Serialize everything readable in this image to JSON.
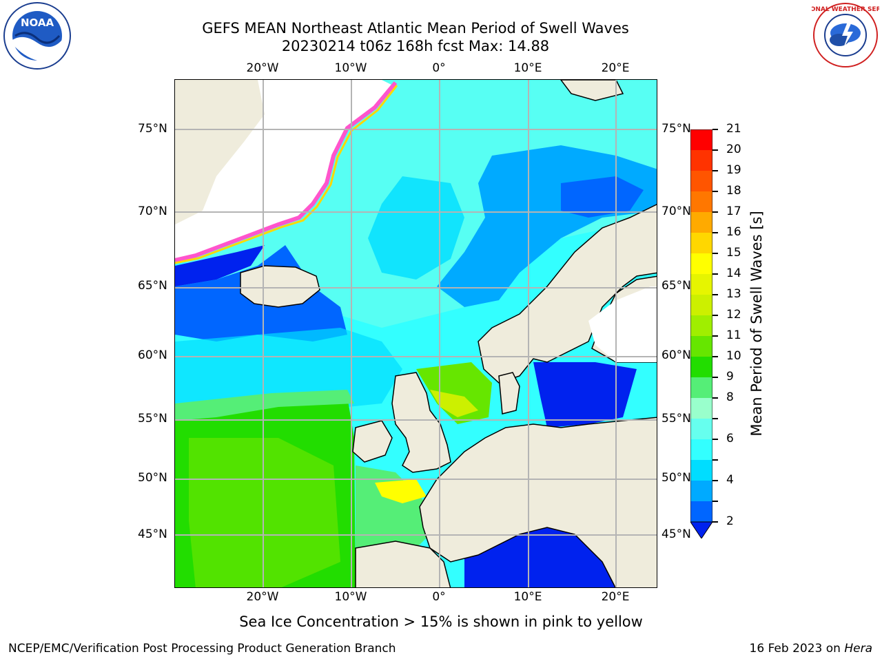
{
  "title": {
    "line1": "GEFS MEAN Northeast Atlantic Mean Period of Swell Waves",
    "line2": "20230214 t06z 168h fcst   Max: 14.88"
  },
  "map": {
    "lon_ticks": [
      "20°W",
      "10°W",
      "0°",
      "10°E",
      "20°E"
    ],
    "lat_ticks": [
      "75°N",
      "70°N",
      "65°N",
      "60°N",
      "55°N",
      "50°N",
      "45°N"
    ],
    "colors": {
      "land": "#efecdc",
      "ice_free_white": "#ffffff",
      "gridline": "#b4b4b4"
    }
  },
  "colorbar": {
    "label": "Mean Period of Swell Waves [s]",
    "ticks": [
      "21",
      "20",
      "19",
      "18",
      "17",
      "16",
      "15",
      "14",
      "13",
      "12",
      "11",
      "10",
      "9",
      "8",
      "7",
      "6",
      "5",
      "4",
      "3",
      "2"
    ],
    "tick_labels_shown": [
      "21",
      "20",
      "19",
      "18",
      "17",
      "16",
      "15",
      "14",
      "13",
      "12",
      "11",
      "10",
      "9",
      "8",
      "6",
      "4",
      "2"
    ],
    "colors": [
      "#ff0000",
      "#ff3300",
      "#ff5500",
      "#ff7700",
      "#ffaa00",
      "#ffd700",
      "#ffff00",
      "#e6f500",
      "#ccf000",
      "#a0ee00",
      "#66e600",
      "#22dd00",
      "#55ee77",
      "#99ffcc",
      "#66ffee",
      "#33ffff",
      "#00ddff",
      "#00aaff",
      "#0066ff",
      "#0022ee"
    ]
  },
  "ice_note": "Sea Ice Concentration > 15% is shown in pink to yellow",
  "footer": {
    "left": "NCEP/EMC/Verification Post Processing Product Generation Branch",
    "right_prefix": "16 Feb 2023 on ",
    "right_machine": "Hera"
  },
  "logos": {
    "noaa_text": "NOAA",
    "nws_text": "NATIONAL WEATHER SERVICE"
  }
}
